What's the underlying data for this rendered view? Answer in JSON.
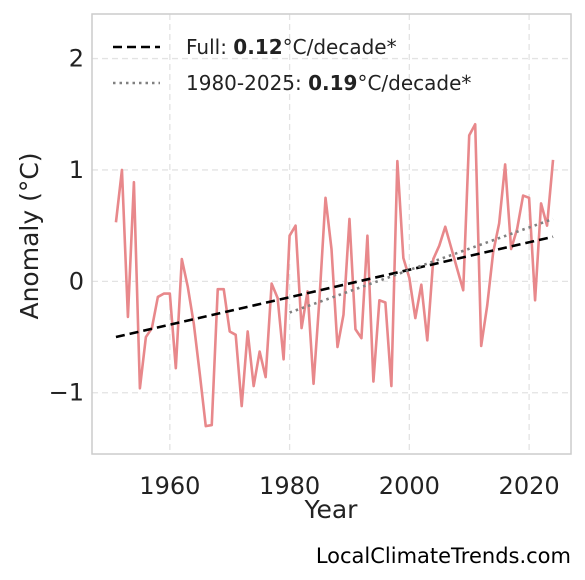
{
  "chart_data": {
    "type": "line",
    "x_label": "Year",
    "y_label": "Anomaly (°C)",
    "xlim": [
      1947,
      2027
    ],
    "ylim": [
      -1.55,
      2.4
    ],
    "x_ticks": [
      1960,
      1980,
      2000,
      2020
    ],
    "y_ticks": [
      -1,
      0,
      1,
      2
    ],
    "y_tick_labels": [
      "−1",
      "0",
      "1",
      "2"
    ],
    "grid": true,
    "legend_position": "top-left",
    "series": [
      {
        "color": "#e8888b",
        "style": "solid",
        "points": [
          [
            1951,
            0.53
          ],
          [
            1952,
            1.0
          ],
          [
            1953,
            -0.32
          ],
          [
            1954,
            0.89
          ],
          [
            1955,
            -0.96
          ],
          [
            1956,
            -0.5
          ],
          [
            1957,
            -0.42
          ],
          [
            1958,
            -0.14
          ],
          [
            1959,
            -0.11
          ],
          [
            1960,
            -0.11
          ],
          [
            1961,
            -0.78
          ],
          [
            1962,
            0.2
          ],
          [
            1963,
            -0.05
          ],
          [
            1964,
            -0.38
          ],
          [
            1965,
            -0.83
          ],
          [
            1966,
            -1.3
          ],
          [
            1967,
            -1.29
          ],
          [
            1968,
            -0.07
          ],
          [
            1969,
            -0.07
          ],
          [
            1970,
            -0.45
          ],
          [
            1971,
            -0.48
          ],
          [
            1972,
            -1.12
          ],
          [
            1973,
            -0.45
          ],
          [
            1974,
            -0.94
          ],
          [
            1975,
            -0.63
          ],
          [
            1976,
            -0.86
          ],
          [
            1977,
            -0.02
          ],
          [
            1978,
            -0.15
          ],
          [
            1979,
            -0.7
          ],
          [
            1980,
            0.41
          ],
          [
            1981,
            0.5
          ],
          [
            1982,
            -0.42
          ],
          [
            1983,
            -0.09
          ],
          [
            1984,
            -0.92
          ],
          [
            1985,
            -0.15
          ],
          [
            1986,
            0.75
          ],
          [
            1987,
            0.29
          ],
          [
            1988,
            -0.59
          ],
          [
            1989,
            -0.3
          ],
          [
            1990,
            0.56
          ],
          [
            1991,
            -0.43
          ],
          [
            1992,
            -0.51
          ],
          [
            1993,
            0.41
          ],
          [
            1994,
            -0.9
          ],
          [
            1995,
            -0.17
          ],
          [
            1996,
            -0.19
          ],
          [
            1997,
            -0.94
          ],
          [
            1998,
            1.08
          ],
          [
            1999,
            0.21
          ],
          [
            2000,
            0.03
          ],
          [
            2001,
            -0.33
          ],
          [
            2002,
            -0.03
          ],
          [
            2003,
            -0.53
          ],
          [
            2004,
            0.2
          ],
          [
            2005,
            0.32
          ],
          [
            2006,
            0.49
          ],
          [
            2007,
            0.3
          ],
          [
            2008,
            0.11
          ],
          [
            2009,
            -0.08
          ],
          [
            2010,
            1.31
          ],
          [
            2011,
            1.41
          ],
          [
            2012,
            -0.58
          ],
          [
            2013,
            -0.22
          ],
          [
            2014,
            0.26
          ],
          [
            2015,
            0.52
          ],
          [
            2016,
            1.05
          ],
          [
            2017,
            0.29
          ],
          [
            2018,
            0.47
          ],
          [
            2019,
            0.77
          ],
          [
            2020,
            0.75
          ],
          [
            2021,
            -0.17
          ],
          [
            2022,
            0.7
          ],
          [
            2023,
            0.5
          ],
          [
            2024,
            1.09
          ]
        ]
      },
      {
        "name": "Full: 0.12°C/decade*",
        "name_prefix": "Full: ",
        "name_value": "0.12",
        "name_suffix": "°C/decade*",
        "color": "#000000",
        "style": "dashed",
        "points": [
          [
            1951,
            -0.5
          ],
          [
            2024,
            0.4
          ]
        ]
      },
      {
        "name": "1980-2025: 0.19°C/decade*",
        "name_prefix": "1980-2025: ",
        "name_value": "0.19",
        "name_suffix": "°C/decade*",
        "color": "#808080",
        "style": "dotted",
        "points": [
          [
            1980,
            -0.28
          ],
          [
            2024,
            0.56
          ]
        ]
      }
    ]
  },
  "credit": "LocalClimateTrends.com"
}
